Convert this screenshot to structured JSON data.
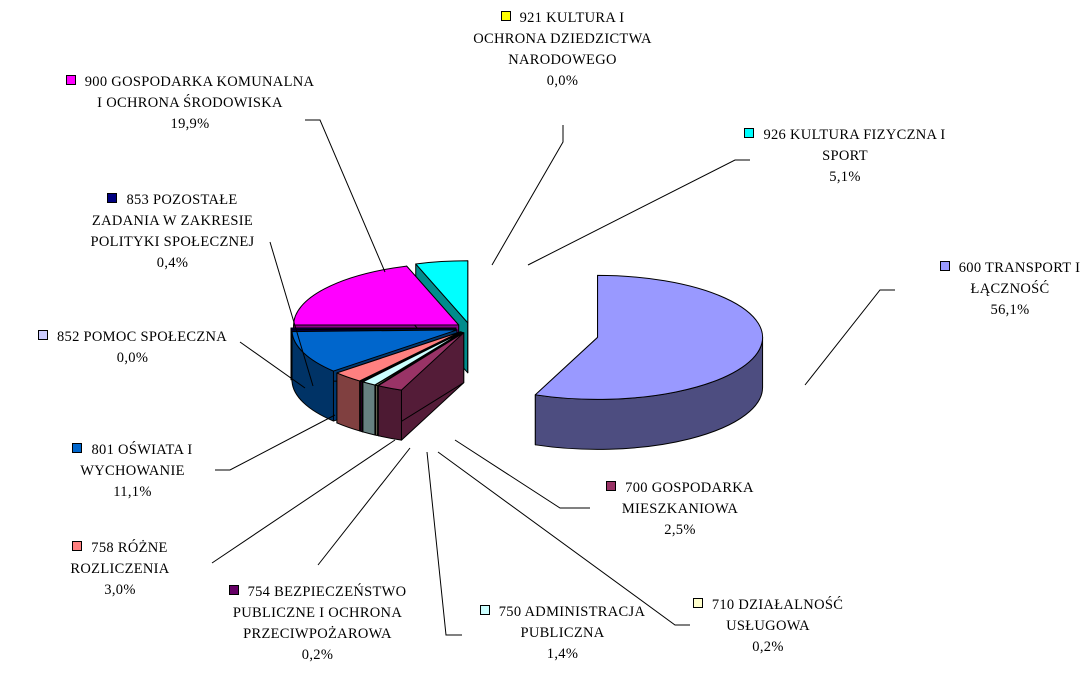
{
  "chart_data": {
    "type": "pie",
    "categories": [
      "600 TRANSPORT I ŁĄCZNOŚĆ",
      "700 GOSPODARKA MIESZKANIOWA",
      "710 DZIAŁALNOŚĆ USŁUGOWA",
      "750 ADMINISTRACJA PUBLICZNA",
      "754 BEZPIECZEŃSTWO PUBLICZNE I OCHRONA PRZECIWPOŻAROWA",
      "758 RÓŻNE ROZLICZENIA",
      "801 OŚWIATA I WYCHOWANIE",
      "852 POMOC SPOŁECZNA",
      "853 POZOSTAŁE ZADANIA W ZAKRESIE POLITYKI SPOŁECZNEJ",
      "900 GOSPODARKA KOMUNALNA I OCHRONA ŚRODOWISKA",
      "921 KULTURA I OCHRONA DZIEDZICTWA NARODOWEGO",
      "926 KULTURA FIZYCZNA I SPORT"
    ],
    "values": [
      56.1,
      2.5,
      0.2,
      1.4,
      0.2,
      3.0,
      11.1,
      0.0,
      0.4,
      19.9,
      0.0,
      5.1
    ],
    "value_labels": [
      "56,1%",
      "2,5%",
      "0,2%",
      "1,4%",
      "0,2%",
      "3,0%",
      "11,1%",
      "0,0%",
      "0,4%",
      "19,9%",
      "0,0%",
      "5,1%"
    ],
    "colors": [
      "#9999ff",
      "#993366",
      "#ffffcc",
      "#ccffff",
      "#660066",
      "#ff8080",
      "#0066cc",
      "#ccccff",
      "#000080",
      "#ff00ff",
      "#ffff00",
      "#00ffff"
    ]
  }
}
